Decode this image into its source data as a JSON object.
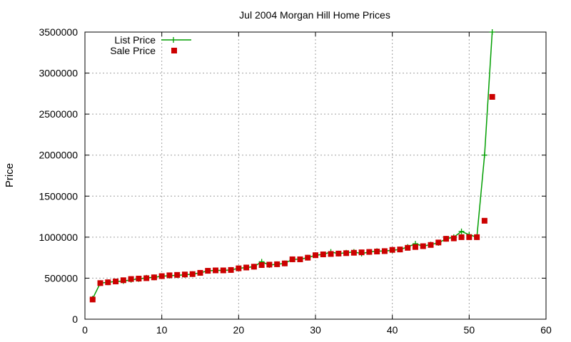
{
  "chart_data": {
    "type": "line",
    "title": "Jul 2004 Morgan Hill Home Prices",
    "xlabel": "",
    "ylabel": "Price",
    "xlim": [
      0,
      60
    ],
    "ylim": [
      0,
      3500000
    ],
    "x_ticks": [
      "0",
      "10",
      "20",
      "30",
      "40",
      "50",
      "60"
    ],
    "y_ticks": [
      "0",
      "500000",
      "1000000",
      "1500000",
      "2000000",
      "2500000",
      "3000000",
      "3500000"
    ],
    "grid": true,
    "legend_position": "top-left",
    "series": [
      {
        "name": "List Price",
        "style": "line+plus",
        "color": "#009e00",
        "x": [
          1,
          2,
          3,
          4,
          5,
          6,
          7,
          8,
          9,
          10,
          11,
          12,
          13,
          14,
          15,
          16,
          17,
          18,
          19,
          20,
          21,
          22,
          23,
          24,
          25,
          26,
          27,
          28,
          29,
          30,
          31,
          32,
          33,
          34,
          35,
          36,
          37,
          38,
          39,
          40,
          41,
          42,
          43,
          44,
          45,
          46,
          47,
          48,
          49,
          50,
          51,
          52,
          53
        ],
        "y": [
          250000,
          440000,
          450000,
          460000,
          465000,
          480000,
          490000,
          505000,
          510000,
          525000,
          530000,
          535000,
          540000,
          550000,
          565000,
          590000,
          595000,
          595000,
          600000,
          620000,
          630000,
          640000,
          700000,
          660000,
          670000,
          680000,
          730000,
          730000,
          750000,
          780000,
          790000,
          820000,
          800000,
          810000,
          820000,
          800000,
          820000,
          830000,
          830000,
          840000,
          850000,
          880000,
          920000,
          890000,
          910000,
          930000,
          980000,
          1000000,
          1070000,
          1030000,
          1000000,
          2000000,
          3500000
        ]
      },
      {
        "name": "Sale Price",
        "style": "square",
        "color": "#cc0000",
        "x": [
          1,
          2,
          3,
          4,
          5,
          6,
          7,
          8,
          9,
          10,
          11,
          12,
          13,
          14,
          15,
          16,
          17,
          18,
          19,
          20,
          21,
          22,
          23,
          24,
          25,
          26,
          27,
          28,
          29,
          30,
          31,
          32,
          33,
          34,
          35,
          36,
          37,
          38,
          39,
          40,
          41,
          42,
          43,
          44,
          45,
          46,
          47,
          48,
          49,
          50,
          51,
          52,
          53
        ],
        "y": [
          240000,
          440000,
          450000,
          460000,
          475000,
          490000,
          495000,
          500000,
          510000,
          525000,
          535000,
          540000,
          545000,
          550000,
          565000,
          590000,
          595000,
          595000,
          600000,
          620000,
          630000,
          640000,
          660000,
          665000,
          670000,
          680000,
          730000,
          730000,
          750000,
          780000,
          790000,
          795000,
          800000,
          805000,
          810000,
          815000,
          820000,
          825000,
          830000,
          845000,
          850000,
          870000,
          880000,
          890000,
          905000,
          935000,
          980000,
          985000,
          1000000,
          1000000,
          1000000,
          1200000,
          2710000
        ]
      }
    ]
  }
}
